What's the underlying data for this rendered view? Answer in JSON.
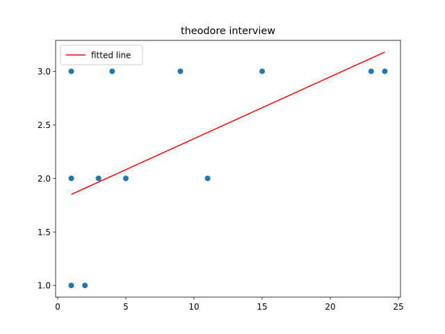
{
  "chart_data": {
    "type": "scatter",
    "title": "theodore interview",
    "series": [
      {
        "type": "scatter",
        "color": "#1f77b4",
        "x": [
          1,
          1,
          1,
          2,
          3,
          4,
          5,
          9,
          11,
          15,
          23,
          24
        ],
        "values": [
          3,
          2,
          1,
          1,
          2,
          3,
          2,
          3,
          2,
          3,
          3,
          3
        ]
      },
      {
        "type": "line",
        "name": "fitted line",
        "color": "#ff0000",
        "x": [
          1,
          24
        ],
        "values": [
          1.85,
          3.18
        ]
      }
    ],
    "xlim": [
      -0.15,
      25.15
    ],
    "xticks": [
      0,
      5,
      10,
      15,
      20,
      25
    ],
    "ylim": [
      0.891,
      3.289
    ],
    "yticks": [
      {
        "value": 1,
        "label": "1.0"
      },
      {
        "value": 1.5,
        "label": "1.5"
      },
      {
        "value": 2,
        "label": "2.0"
      },
      {
        "value": 2.5,
        "label": "2.5"
      },
      {
        "value": 3,
        "label": "3.0"
      }
    ],
    "legend": "upper left",
    "grid": false
  }
}
